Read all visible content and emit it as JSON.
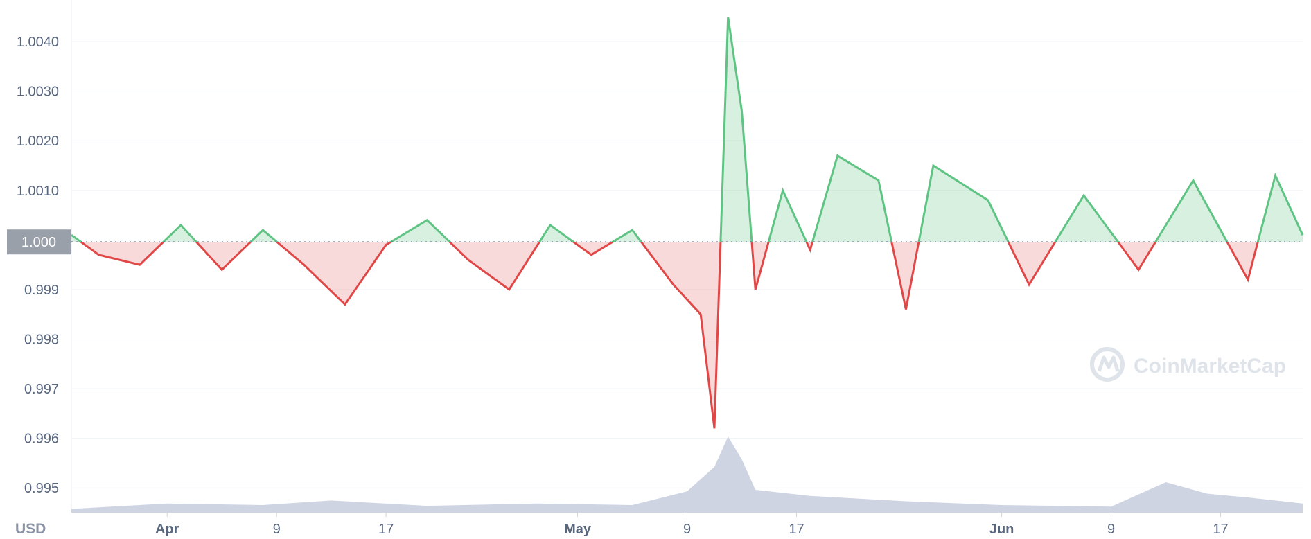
{
  "chart_data": {
    "type": "line",
    "unit_label": "USD",
    "y_ticks": [
      "1.0040",
      "1.0030",
      "1.0020",
      "1.0010",
      "1.0000",
      "0.999",
      "0.998",
      "0.997",
      "0.996",
      "0.995"
    ],
    "y_tick_values": [
      1.004,
      1.003,
      1.002,
      1.001,
      1.0,
      0.999,
      0.998,
      0.997,
      0.996,
      0.995
    ],
    "ylim": [
      0.9945,
      1.0047
    ],
    "x_ticks": [
      {
        "label": "Apr",
        "date": "2022-04-01",
        "bold": true
      },
      {
        "label": "9",
        "date": "2022-04-09",
        "bold": false
      },
      {
        "label": "17",
        "date": "2022-04-17",
        "bold": false
      },
      {
        "label": "May",
        "date": "2022-05-01",
        "bold": true
      },
      {
        "label": "9",
        "date": "2022-05-09",
        "bold": false
      },
      {
        "label": "17",
        "date": "2022-05-17",
        "bold": false
      },
      {
        "label": "Jun",
        "date": "2022-06-01",
        "bold": true
      },
      {
        "label": "9",
        "date": "2022-06-09",
        "bold": false
      },
      {
        "label": "17",
        "date": "2022-06-17",
        "bold": false
      }
    ],
    "xlim": [
      "2022-03-25",
      "2022-06-23"
    ],
    "baseline": {
      "label": "1.000",
      "value": 0.99996
    },
    "colors": {
      "above": "#5fc483",
      "below": "#e04848",
      "volume": "#cfd4e3",
      "badge": "#9aa0aa",
      "grid": "#eff2f5"
    },
    "grid": true,
    "price_series": [
      [
        "2022-03-25",
        1.0001
      ],
      [
        "2022-03-27",
        0.9997
      ],
      [
        "2022-03-30",
        0.9995
      ],
      [
        "2022-04-02",
        1.0003
      ],
      [
        "2022-04-05",
        0.9994
      ],
      [
        "2022-04-08",
        1.0002
      ],
      [
        "2022-04-11",
        0.9995
      ],
      [
        "2022-04-14",
        0.9987
      ],
      [
        "2022-04-17",
        0.9999
      ],
      [
        "2022-04-20",
        1.0004
      ],
      [
        "2022-04-23",
        0.9996
      ],
      [
        "2022-04-26",
        0.999
      ],
      [
        "2022-04-29",
        1.0003
      ],
      [
        "2022-05-02",
        0.9997
      ],
      [
        "2022-05-05",
        1.0002
      ],
      [
        "2022-05-08",
        0.9991
      ],
      [
        "2022-05-10",
        0.9985
      ],
      [
        "2022-05-11",
        0.9962
      ],
      [
        "2022-05-12",
        1.0045
      ],
      [
        "2022-05-13",
        1.0026
      ],
      [
        "2022-05-14",
        0.999
      ],
      [
        "2022-05-16",
        1.001
      ],
      [
        "2022-05-18",
        0.9998
      ],
      [
        "2022-05-20",
        1.0017
      ],
      [
        "2022-05-23",
        1.0012
      ],
      [
        "2022-05-25",
        0.9986
      ],
      [
        "2022-05-27",
        1.0015
      ],
      [
        "2022-05-31",
        1.0008
      ],
      [
        "2022-06-03",
        0.9991
      ],
      [
        "2022-06-07",
        1.0009
      ],
      [
        "2022-06-11",
        0.9994
      ],
      [
        "2022-06-15",
        1.0012
      ],
      [
        "2022-06-19",
        0.9992
      ],
      [
        "2022-06-21",
        1.0013
      ],
      [
        "2022-06-23",
        1.0001
      ]
    ],
    "volume_series": [
      [
        "2022-03-25",
        0.05
      ],
      [
        "2022-04-01",
        0.12
      ],
      [
        "2022-04-08",
        0.1
      ],
      [
        "2022-04-13",
        0.16
      ],
      [
        "2022-04-20",
        0.09
      ],
      [
        "2022-04-28",
        0.12
      ],
      [
        "2022-05-05",
        0.1
      ],
      [
        "2022-05-09",
        0.28
      ],
      [
        "2022-05-11",
        0.6
      ],
      [
        "2022-05-12",
        1.0
      ],
      [
        "2022-05-13",
        0.7
      ],
      [
        "2022-05-14",
        0.3
      ],
      [
        "2022-05-18",
        0.22
      ],
      [
        "2022-05-25",
        0.15
      ],
      [
        "2022-06-01",
        0.1
      ],
      [
        "2022-06-09",
        0.08
      ],
      [
        "2022-06-13",
        0.4
      ],
      [
        "2022-06-16",
        0.25
      ],
      [
        "2022-06-19",
        0.2
      ],
      [
        "2022-06-23",
        0.12
      ]
    ],
    "watermark": "CoinMarketCap"
  }
}
